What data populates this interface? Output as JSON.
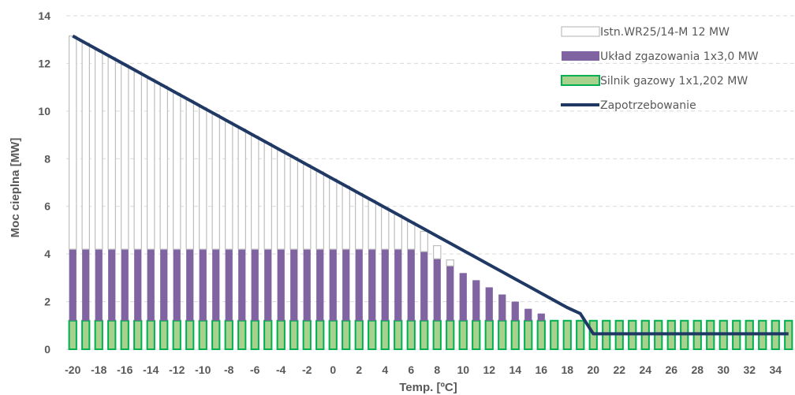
{
  "chart_data": {
    "type": "bar",
    "stacked": true,
    "xlabel": "Temp. [ºC]",
    "ylabel": "Moc cieplna [MW]",
    "ylim": [
      0,
      14
    ],
    "yticks": [
      0,
      2,
      4,
      6,
      8,
      10,
      12,
      14
    ],
    "grid": "horizontal dashed",
    "legend_position": "top-right",
    "x": [
      -20,
      -19,
      -18,
      -17,
      -16,
      -15,
      -14,
      -13,
      -12,
      -11,
      -10,
      -9,
      -8,
      -7,
      -6,
      -5,
      -4,
      -3,
      -2,
      -1,
      0,
      1,
      2,
      3,
      4,
      5,
      6,
      7,
      8,
      9,
      10,
      11,
      12,
      13,
      14,
      15,
      16,
      17,
      18,
      19,
      20,
      21,
      22,
      23,
      24,
      25,
      26,
      27,
      28,
      29,
      30,
      31,
      32,
      33,
      34,
      35
    ],
    "xticks": [
      -20,
      -18,
      -16,
      -14,
      -12,
      -10,
      -8,
      -6,
      -4,
      -2,
      0,
      2,
      4,
      6,
      8,
      10,
      12,
      14,
      16,
      18,
      20,
      22,
      24,
      26,
      28,
      30,
      32,
      34
    ],
    "series": [
      {
        "name": "Silnik gazowy 1x1,202 MW",
        "kind": "bar",
        "color": "#A9D18E",
        "border": "#00B050",
        "values": [
          1.2,
          1.2,
          1.2,
          1.2,
          1.2,
          1.2,
          1.2,
          1.2,
          1.2,
          1.2,
          1.2,
          1.2,
          1.2,
          1.2,
          1.2,
          1.2,
          1.2,
          1.2,
          1.2,
          1.2,
          1.2,
          1.2,
          1.2,
          1.2,
          1.2,
          1.2,
          1.2,
          1.2,
          1.2,
          1.2,
          1.2,
          1.2,
          1.2,
          1.2,
          1.2,
          1.2,
          1.2,
          1.2,
          1.2,
          1.2,
          1.2,
          1.2,
          1.2,
          1.2,
          1.2,
          1.2,
          1.2,
          1.2,
          1.2,
          1.2,
          1.2,
          1.2,
          1.2,
          1.2,
          1.2,
          1.2
        ]
      },
      {
        "name": "Układ zgazowania 1x3,0 MW",
        "kind": "bar",
        "color": "#8064A2",
        "values": [
          3.0,
          3.0,
          3.0,
          3.0,
          3.0,
          3.0,
          3.0,
          3.0,
          3.0,
          3.0,
          3.0,
          3.0,
          3.0,
          3.0,
          3.0,
          3.0,
          3.0,
          3.0,
          3.0,
          3.0,
          3.0,
          3.0,
          3.0,
          3.0,
          3.0,
          3.0,
          3.0,
          2.9,
          2.6,
          2.3,
          2.0,
          1.7,
          1.4,
          1.1,
          0.8,
          0.5,
          0.3,
          0,
          0,
          0,
          0,
          0,
          0,
          0,
          0,
          0,
          0,
          0,
          0,
          0,
          0,
          0,
          0,
          0,
          0,
          0
        ]
      },
      {
        "name": "Istn.WR25/14-M 12 MW",
        "kind": "bar",
        "color": "#FFFFFF",
        "border": "#BFBFBF",
        "values": [
          8.95,
          8.65,
          8.35,
          8.05,
          7.75,
          7.45,
          7.15,
          6.85,
          6.55,
          6.25,
          5.95,
          5.65,
          5.35,
          5.05,
          4.75,
          4.45,
          4.15,
          3.85,
          3.55,
          3.25,
          2.95,
          2.65,
          2.35,
          2.05,
          1.75,
          1.45,
          1.15,
          0.85,
          0.55,
          0.25,
          0,
          0,
          0,
          0,
          0,
          0,
          0,
          0,
          0,
          0,
          0,
          0,
          0,
          0,
          0,
          0,
          0,
          0,
          0,
          0,
          0,
          0,
          0,
          0,
          0,
          0
        ]
      },
      {
        "name": "Zapotrzebowanie",
        "kind": "line",
        "color": "#1F3864",
        "values": [
          13.15,
          12.85,
          12.55,
          12.25,
          11.95,
          11.65,
          11.35,
          11.05,
          10.75,
          10.45,
          10.15,
          9.85,
          9.55,
          9.25,
          8.95,
          8.65,
          8.35,
          8.05,
          7.75,
          7.45,
          7.15,
          6.85,
          6.55,
          6.25,
          5.95,
          5.65,
          5.35,
          5.05,
          4.75,
          4.45,
          4.15,
          3.85,
          3.55,
          3.25,
          2.95,
          2.65,
          2.35,
          2.05,
          1.75,
          1.5,
          0.65,
          0.65,
          0.65,
          0.65,
          0.65,
          0.65,
          0.65,
          0.65,
          0.65,
          0.65,
          0.65,
          0.65,
          0.65,
          0.65,
          0.65,
          0.65
        ]
      }
    ]
  }
}
